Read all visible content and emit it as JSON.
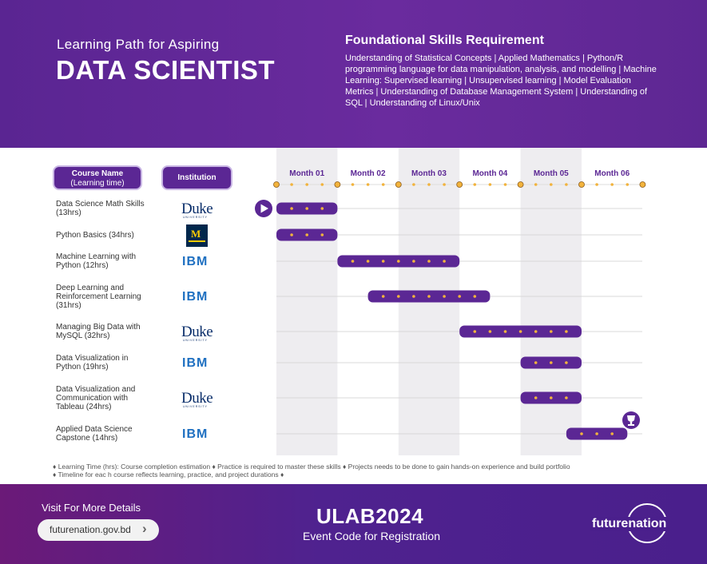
{
  "header": {
    "subtitle": "Learning Path for Aspiring",
    "title": "DATA SCIENTIST",
    "requirements_title": "Foundational Skills Requirement",
    "requirements_text": "Understanding of Statistical Concepts | Applied Mathematics | Python/R programming language for data manipulation, analysis, and modelling | Machine Learning: Supervised learning | Unsupervised learning | Model Evaluation Metrics | Understanding of Database Management System | Understanding of SQL | Understanding of Linux/Unix"
  },
  "columns": {
    "course_title": "Course Name",
    "course_sub": "(Learning time)",
    "institution": "Institution"
  },
  "logos": {
    "duke": "Duke",
    "duke_sub": "UNIVERSITY",
    "ibm": "IBM",
    "michigan": "M"
  },
  "chart_data": {
    "type": "gantt",
    "months": [
      "Month 01",
      "Month 02",
      "Month 03",
      "Month 04",
      "Month 05",
      "Month 06"
    ],
    "tasks": [
      {
        "name": "Data Science Math Skills (13hrs)",
        "institution": "duke",
        "start": 0,
        "end": 1
      },
      {
        "name": "Python Basics (34hrs)",
        "institution": "michigan",
        "start": 0,
        "end": 1
      },
      {
        "name": "Machine Learning with Python (12hrs)",
        "institution": "ibm",
        "start": 1,
        "end": 3
      },
      {
        "name": "Deep Learning and Reinforcement Learning (31hrs)",
        "institution": "ibm",
        "start": 1.5,
        "end": 3.5
      },
      {
        "name": "Managing Big Data with MySQL (32hrs)",
        "institution": "duke",
        "start": 3,
        "end": 5
      },
      {
        "name": "Data Visualization in Python (19hrs)",
        "institution": "ibm",
        "start": 4,
        "end": 5
      },
      {
        "name": "Data Visualization and Communication with Tableau (24hrs)",
        "institution": "duke",
        "start": 4,
        "end": 5
      },
      {
        "name": "Applied Data Science Capstone (14hrs)",
        "institution": "ibm",
        "start": 4.75,
        "end": 5.75
      }
    ]
  },
  "legend": [
    "♦ Learning Time (hrs): Course completion estimation ♦ Practice is required to master these skills ♦ Projects needs to be done to gain hands-on experience and  build portfolio",
    "♦ Timeline for eac h course reflects learning, practice, and project durations ♦"
  ],
  "footer": {
    "visit_label": "Visit For More Details",
    "url": "futurenation.gov.bd",
    "event_code": "ULAB2024",
    "event_code_label": "Event Code for Registration",
    "brand": "futurenation"
  },
  "colors": {
    "purple": "#5b2794",
    "dot": "#f2b33d",
    "stripe": "#eeedf0"
  }
}
